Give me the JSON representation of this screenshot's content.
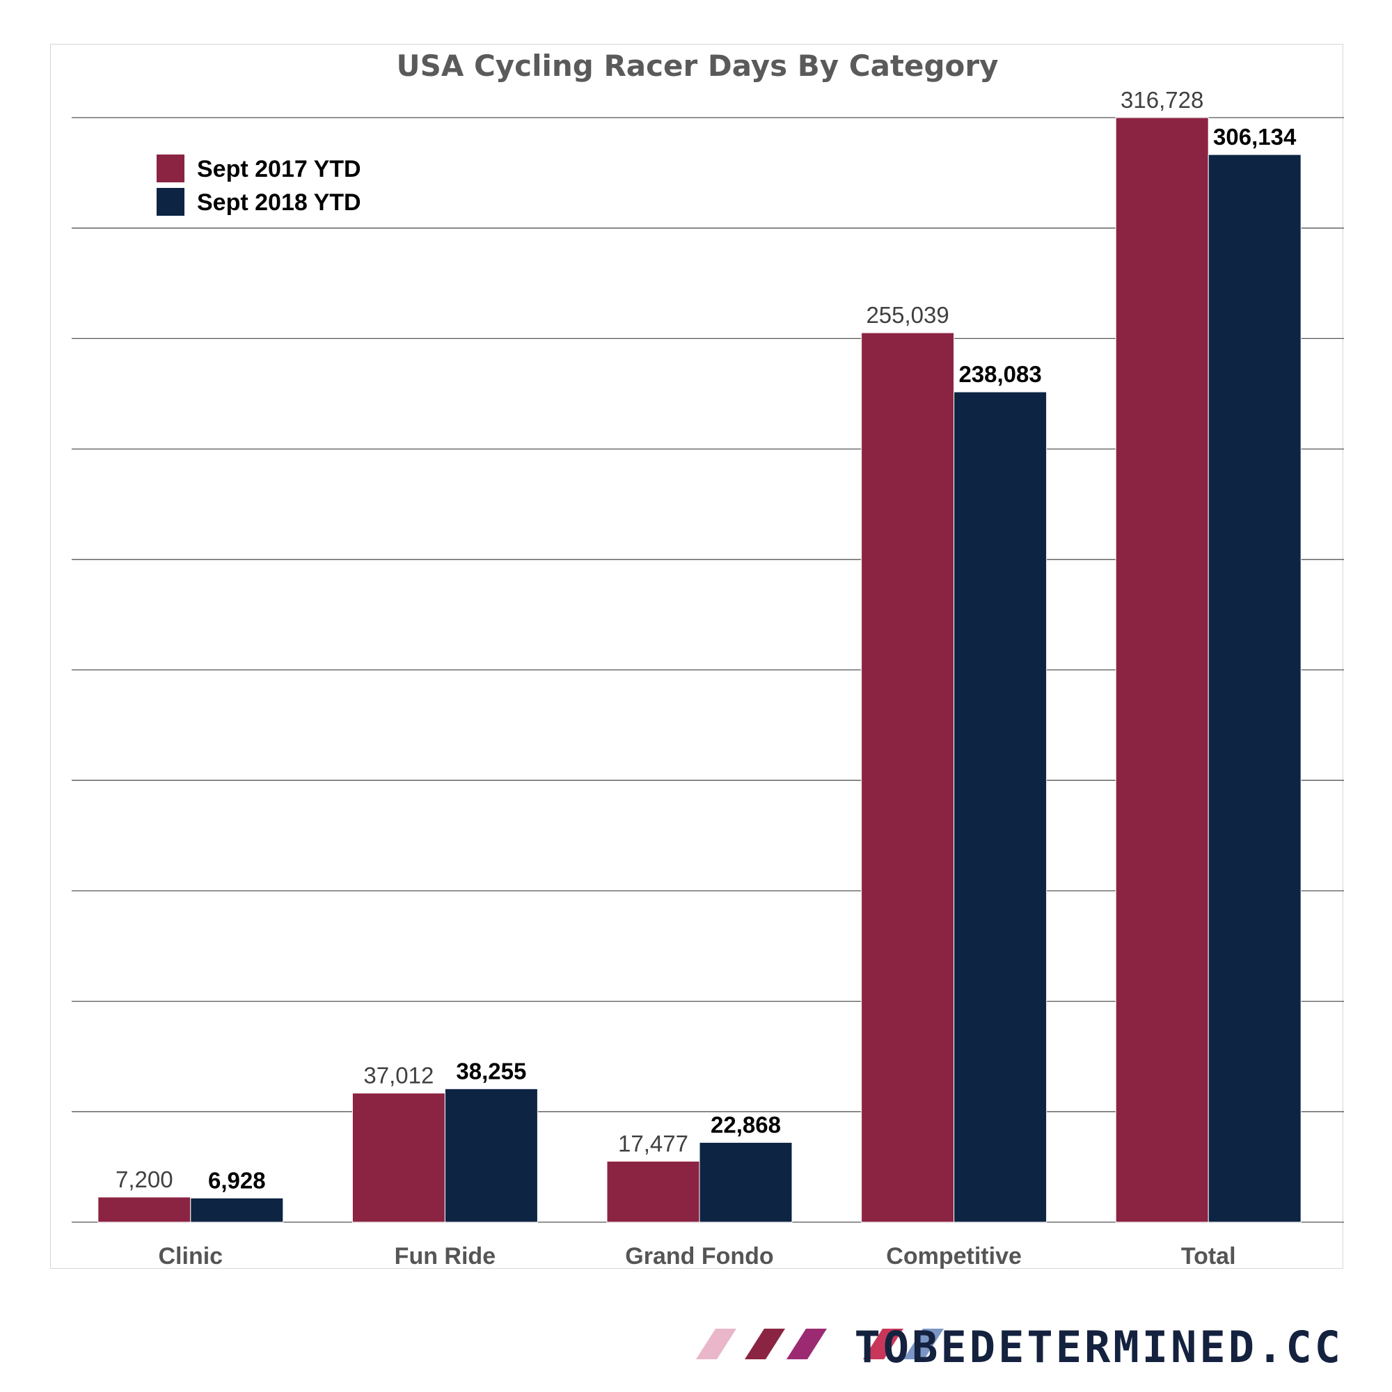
{
  "chart_data": {
    "type": "bar",
    "title": "USA Cycling Racer Days By Category",
    "categories": [
      "Clinic",
      "Fun Ride",
      "Grand Fondo",
      "Competitive",
      "Total"
    ],
    "series": [
      {
        "name": "Sept 2017 YTD",
        "color": "#8b2442",
        "values": [
          7200,
          37012,
          17477,
          255039,
          316728
        ],
        "labels": [
          "7,200",
          "37,012",
          "17,477",
          "255,039",
          "316,728"
        ]
      },
      {
        "name": "Sept 2018 YTD",
        "color": "#0d2443",
        "values": [
          6928,
          38255,
          22868,
          238083,
          306134
        ],
        "labels": [
          "6,928",
          "38,255",
          "22,868",
          "238,083",
          "306,134"
        ]
      }
    ],
    "ylim": [
      0,
      316728
    ],
    "grid": true,
    "legend_position": "top-left",
    "xlabel": "",
    "ylabel": ""
  },
  "branding": {
    "text": "TOBEDETERMINED.CC",
    "stripe_colors": [
      "#e9b7c9",
      "#8b2442",
      "#9b2a73",
      "#c8375a",
      "#7b96c4"
    ]
  }
}
